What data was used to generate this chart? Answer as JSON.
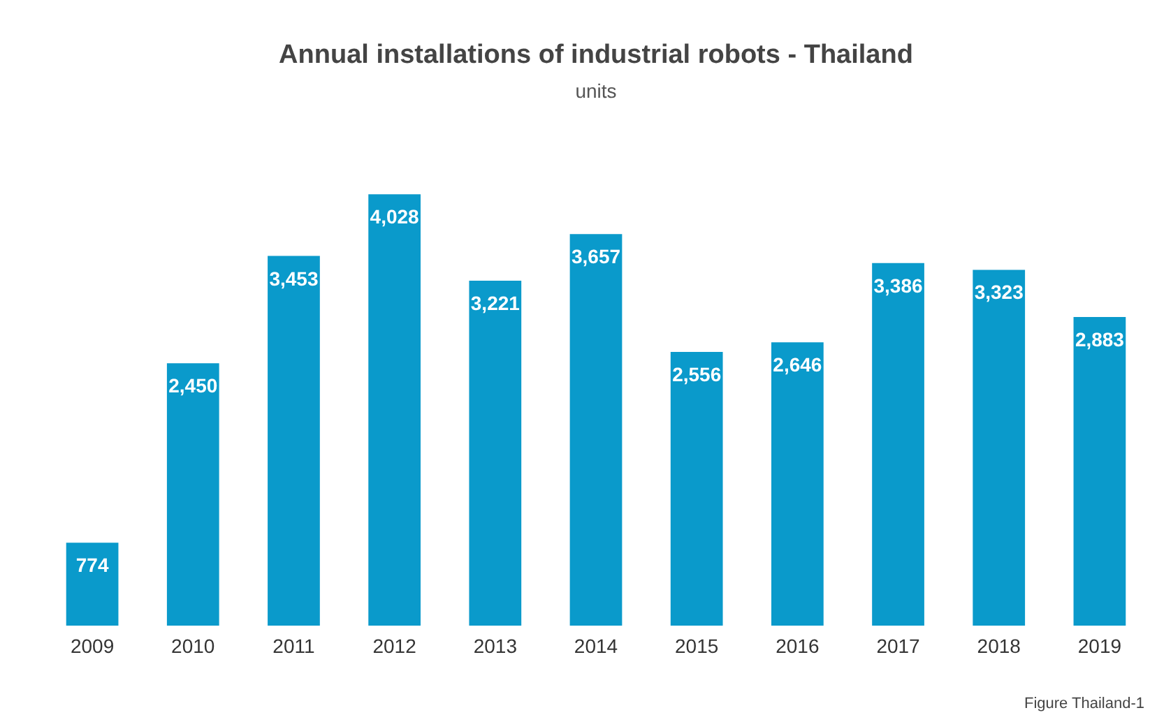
{
  "chart_data": {
    "type": "bar",
    "title": "Annual installations of industrial robots - Thailand",
    "subtitle": "units",
    "categories": [
      "2009",
      "2010",
      "2011",
      "2012",
      "2013",
      "2014",
      "2015",
      "2016",
      "2017",
      "2018",
      "2019"
    ],
    "values": [
      774,
      2450,
      3453,
      4028,
      3221,
      3657,
      2556,
      2646,
      3386,
      3323,
      2883
    ],
    "value_labels": [
      "774",
      "2,450",
      "3,453",
      "4,028",
      "3,221",
      "3,657",
      "2,556",
      "2,646",
      "3,386",
      "3,323",
      "2,883"
    ],
    "color": "#0a9acb",
    "annotations": [
      "Figure Thailand-1"
    ]
  }
}
